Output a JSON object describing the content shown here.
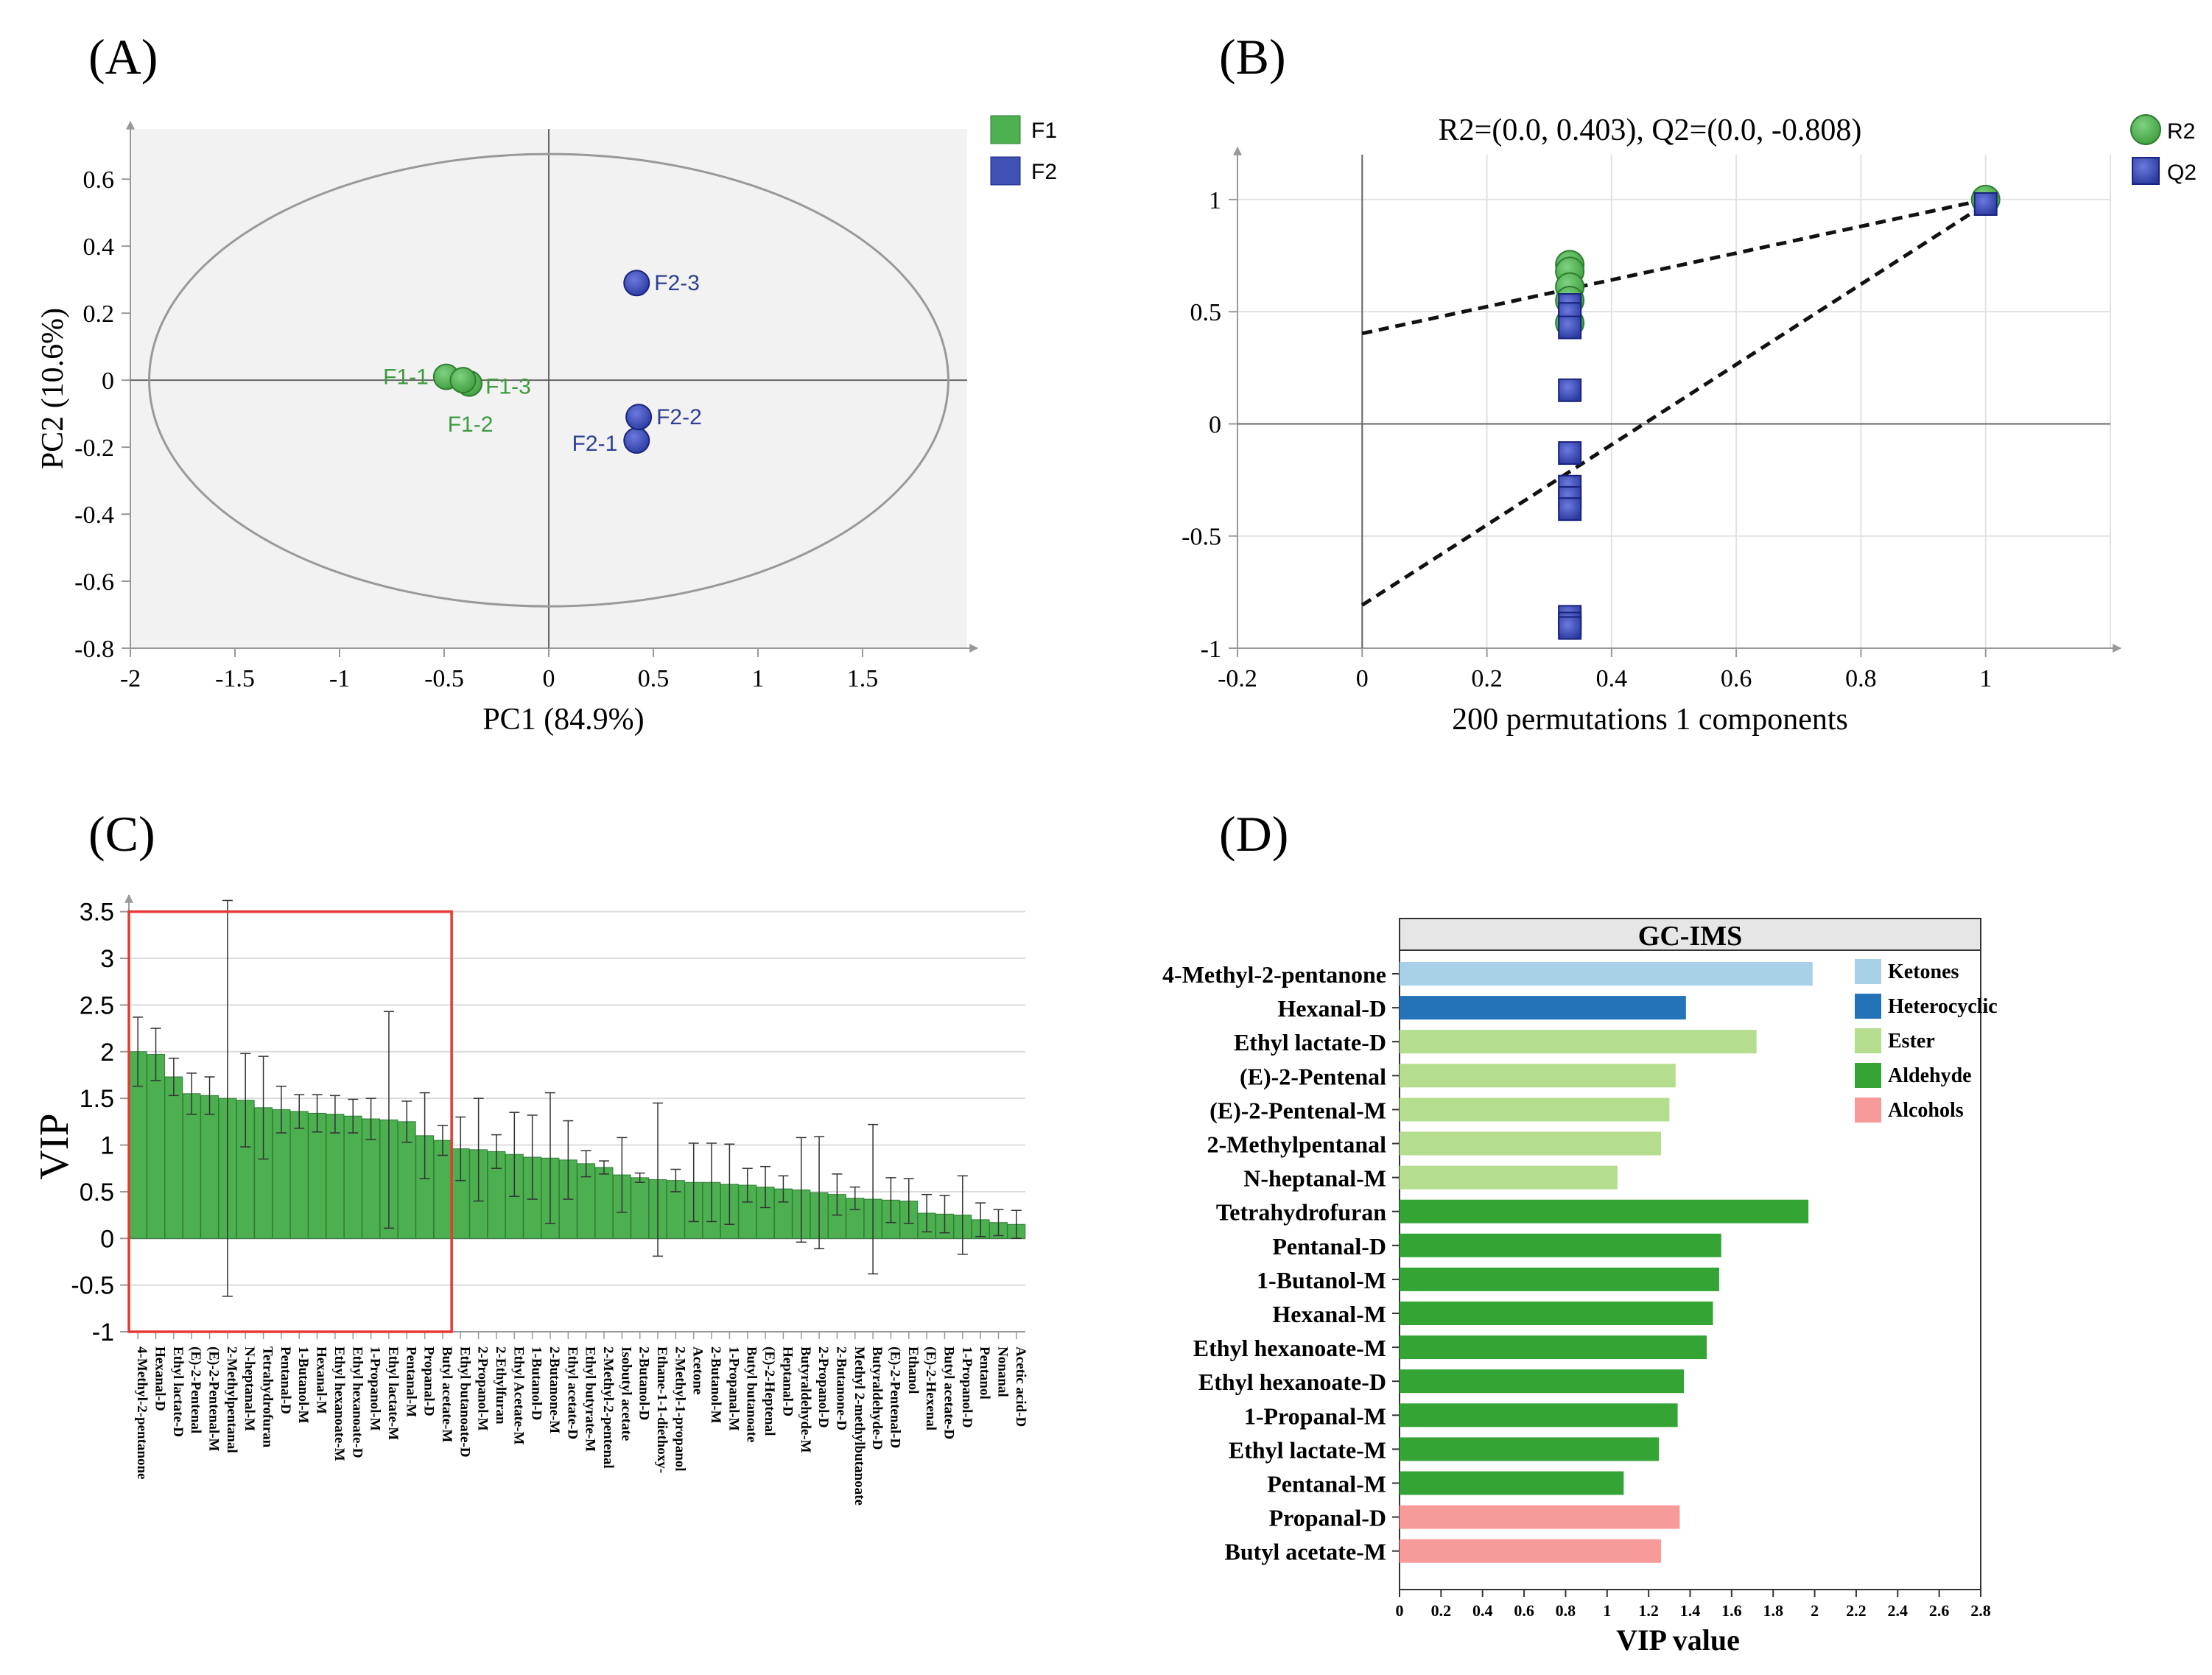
{
  "chart_data": [
    {
      "panel": "(A)",
      "type": "scatter",
      "xlabel": "PC1 (84.9%)",
      "ylabel": "PC2 (10.6%)",
      "xlim": [
        -2,
        2
      ],
      "ylim": [
        -0.8,
        0.75
      ],
      "xticks": [
        -2,
        -1.5,
        -1,
        -0.5,
        0,
        0.5,
        1,
        1.5
      ],
      "xtick_labels": [
        "-2",
        "-1.5",
        "-1",
        "-0.5",
        "0",
        "0.5",
        "1",
        "1.5"
      ],
      "yticks": [
        -0.8,
        -0.6,
        -0.4,
        -0.2,
        0,
        0.2,
        0.4,
        0.6
      ],
      "ytick_labels": [
        "-0.8",
        "-0.6",
        "-0.4",
        "-0.2",
        "0",
        "0.2",
        "0.4",
        "0.6"
      ],
      "ellipse": {
        "center": [
          0,
          0
        ],
        "rx": 1.91,
        "ry": 0.675
      },
      "legend": [
        {
          "name": "F1",
          "color": "#4caf50"
        },
        {
          "name": "F2",
          "color": "#3f51b5"
        }
      ],
      "points": [
        {
          "label": "F1-1",
          "x": -0.49,
          "y": 0.01,
          "group": "F1"
        },
        {
          "label": "F1-2",
          "x": -0.41,
          "y": 0.0,
          "group": "F1"
        },
        {
          "label": "F1-3",
          "x": -0.38,
          "y": -0.01,
          "group": "F1"
        },
        {
          "label": "F2-1",
          "x": 0.42,
          "y": -0.18,
          "group": "F2"
        },
        {
          "label": "F2-2",
          "x": 0.43,
          "y": -0.11,
          "group": "F2"
        },
        {
          "label": "F2-3",
          "x": 0.42,
          "y": 0.29,
          "group": "F2"
        }
      ]
    },
    {
      "panel": "(B)",
      "type": "scatter",
      "title": "R2=(0.0, 0.403), Q2=(0.0, -0.808)",
      "xlabel": "200 permutations 1 components",
      "xlim": [
        -0.2,
        1.2
      ],
      "ylim": [
        -1,
        1.2
      ],
      "xticks": [
        -0.2,
        0,
        0.2,
        0.4,
        0.6,
        0.8,
        1
      ],
      "xtick_labels": [
        "-0.2",
        "0",
        "0.2",
        "0.4",
        "0.6",
        "0.8",
        "1"
      ],
      "yticks": [
        -1,
        -0.5,
        0,
        0.5,
        1
      ],
      "ytick_labels": [
        "-1",
        "-0.5",
        "0",
        "0.5",
        "1"
      ],
      "legend": [
        {
          "name": "R2",
          "color": "#4caf50",
          "marker": "circle"
        },
        {
          "name": "Q2",
          "color": "#3f51b5",
          "marker": "square"
        }
      ],
      "series": [
        {
          "name": "R2",
          "x": [
            0.333,
            0.333,
            0.333,
            0.333,
            0.333,
            1.0
          ],
          "y": [
            0.71,
            0.68,
            0.61,
            0.55,
            0.45,
            1.0
          ]
        },
        {
          "name": "Q2",
          "x": [
            0.333,
            0.333,
            0.333,
            0.333,
            0.333,
            0.333,
            0.333,
            0.333,
            0.333,
            0.333,
            0.333,
            1.0
          ],
          "y": [
            0.53,
            0.49,
            0.43,
            0.15,
            -0.13,
            -0.28,
            -0.33,
            -0.38,
            -0.86,
            -0.89,
            -0.91,
            0.98
          ]
        }
      ],
      "regression_lines": [
        {
          "name": "R2",
          "from": [
            0,
            0.403
          ],
          "to": [
            1,
            1.0
          ]
        },
        {
          "name": "Q2",
          "from": [
            0,
            -0.808
          ],
          "to": [
            1,
            0.98
          ]
        }
      ]
    },
    {
      "panel": "(C)",
      "type": "bar",
      "ylabel": "VIP",
      "ylim": [
        -1,
        3.6
      ],
      "yticks": [
        -1,
        -0.5,
        0,
        0.5,
        1,
        1.5,
        2,
        2.5,
        3,
        3.5
      ],
      "ytick_labels": [
        "-1",
        "-0.5",
        "0",
        "0.5",
        "1",
        "1.5",
        "2",
        "2.5",
        "3",
        "3.5"
      ],
      "bar_color": "#4caf50",
      "highlight_box": {
        "x_from_index": 0,
        "x_to_index": 17,
        "y_range": [
          -1,
          3.5
        ],
        "color": "#e53935"
      },
      "categories": [
        "4-Methyl-2-pentanone",
        "Hexanal-D",
        "Ethyl lactate-D",
        "(E)-2-Pentenal",
        "(E)-2-Pentenal-M",
        "2-Methylpentanal",
        "N-heptanal-M",
        "Tetrahydrofuran",
        "Pentanal-D",
        "1-Butanol-M",
        "Hexanal-M",
        "Ethyl hexanoate-M",
        "Ethyl hexanoate-D",
        "1-Propanol-M",
        "Ethyl lactate-M",
        "Pentanal-M",
        "Propanal-D",
        "Butyl acetate-M",
        "Ethyl butanoate-D",
        "2-Propanol-M",
        "2-Ethylfuran",
        "Ethyl Acetate-M",
        "1-Butanol-D",
        "2-Butanone-M",
        "Ethyl acetate-D",
        "Ethyl butyrate-M",
        "2-Methyl-2-pentenal",
        "Isobutyl acetate",
        "2-Butanol-D",
        "Ethane-1-1-diethoxy-",
        "2-Methyl-1-propanol",
        "Acetone",
        "2-Butanol-M",
        "1-Propanal-M",
        "Butyl butanoate",
        "(E)-2-Heptenal",
        "Heptanal-D",
        "Butyraldehyde-M",
        "2-Propanol-D",
        "2-Butanone-D",
        "Methyl 2-methylbutanoate",
        "Butyraldehyde-D",
        "(E)-2-Pentenal-D",
        "Ethanol",
        "(E)-2-Hexenal",
        "Butyl acetate-D",
        "1-Propanol-D",
        "Pentanol",
        "Nonanal",
        "Acetic acid-D"
      ],
      "values": [
        2.0,
        1.97,
        1.73,
        1.55,
        1.53,
        1.5,
        1.48,
        1.4,
        1.38,
        1.36,
        1.34,
        1.33,
        1.31,
        1.28,
        1.27,
        1.25,
        1.1,
        1.05,
        0.96,
        0.95,
        0.93,
        0.9,
        0.87,
        0.86,
        0.84,
        0.8,
        0.76,
        0.68,
        0.65,
        0.63,
        0.62,
        0.6,
        0.6,
        0.58,
        0.57,
        0.55,
        0.53,
        0.52,
        0.49,
        0.47,
        0.43,
        0.42,
        0.41,
        0.4,
        0.27,
        0.26,
        0.25,
        0.2,
        0.17,
        0.15
      ],
      "error_bars": [
        0.37,
        0.28,
        0.2,
        0.22,
        0.2,
        2.12,
        0.5,
        0.55,
        0.25,
        0.18,
        0.2,
        0.2,
        0.18,
        0.22,
        1.16,
        0.22,
        0.46,
        0.16,
        0.34,
        0.55,
        0.18,
        0.45,
        0.45,
        0.7,
        0.42,
        0.14,
        0.07,
        0.4,
        0.05,
        0.82,
        0.12,
        0.42,
        0.42,
        0.43,
        0.18,
        0.22,
        0.14,
        0.56,
        0.6,
        0.22,
        0.12,
        0.8,
        0.24,
        0.24,
        0.2,
        0.2,
        0.42,
        0.18,
        0.14,
        0.15
      ]
    },
    {
      "panel": "(D)",
      "type": "bar",
      "orientation": "horizontal",
      "title": "GC-IMS",
      "xlabel": "VIP value",
      "xlim": [
        0,
        2.8
      ],
      "xticks": [
        0,
        0.2,
        0.4,
        0.6,
        0.8,
        1,
        1.2,
        1.4,
        1.6,
        1.8,
        2,
        2.2,
        2.4,
        2.6,
        2.8
      ],
      "xtick_labels": [
        "0",
        "0.2",
        "0.4",
        "0.6",
        "0.8",
        "1",
        "1.2",
        "1.4",
        "1.6",
        "1.8",
        "2",
        "2.2",
        "2.4",
        "2.6",
        "2.8"
      ],
      "legend": [
        {
          "name": "Ketones",
          "color": "#a8d1e7"
        },
        {
          "name": "Heterocyclic",
          "color": "#2473b8"
        },
        {
          "name": "Ester",
          "color": "#b4de8e"
        },
        {
          "name": "Aldehyde",
          "color": "#34a534"
        },
        {
          "name": "Alcohols",
          "color": "#f79a9a"
        }
      ],
      "categories": [
        "4-Methyl-2-pentanone",
        "Hexanal-D",
        "Ethyl lactate-D",
        "(E)-2-Pentenal",
        "(E)-2-Pentenal-M",
        "2-Methylpentanal",
        "N-heptanal-M",
        "Tetrahydrofuran",
        "Pentanal-D",
        "1-Butanol-M",
        "Hexanal-M",
        "Ethyl hexanoate-M",
        "Ethyl hexanoate-D",
        "1-Propanal-M",
        "Ethyl lactate-M",
        "Pentanal-M",
        "Propanal-D",
        "Butyl acetate-M"
      ],
      "values": [
        1.99,
        1.38,
        1.72,
        1.33,
        1.3,
        1.26,
        1.05,
        1.97,
        1.55,
        1.54,
        1.51,
        1.48,
        1.37,
        1.34,
        1.25,
        1.08,
        1.35,
        1.26
      ],
      "classes": [
        "Ketones",
        "Heterocyclic",
        "Ester",
        "Ester",
        "Ester",
        "Ester",
        "Ester",
        "Aldehyde",
        "Aldehyde",
        "Aldehyde",
        "Aldehyde",
        "Aldehyde",
        "Aldehyde",
        "Aldehyde",
        "Aldehyde",
        "Aldehyde",
        "Alcohols",
        "Alcohols"
      ]
    }
  ]
}
